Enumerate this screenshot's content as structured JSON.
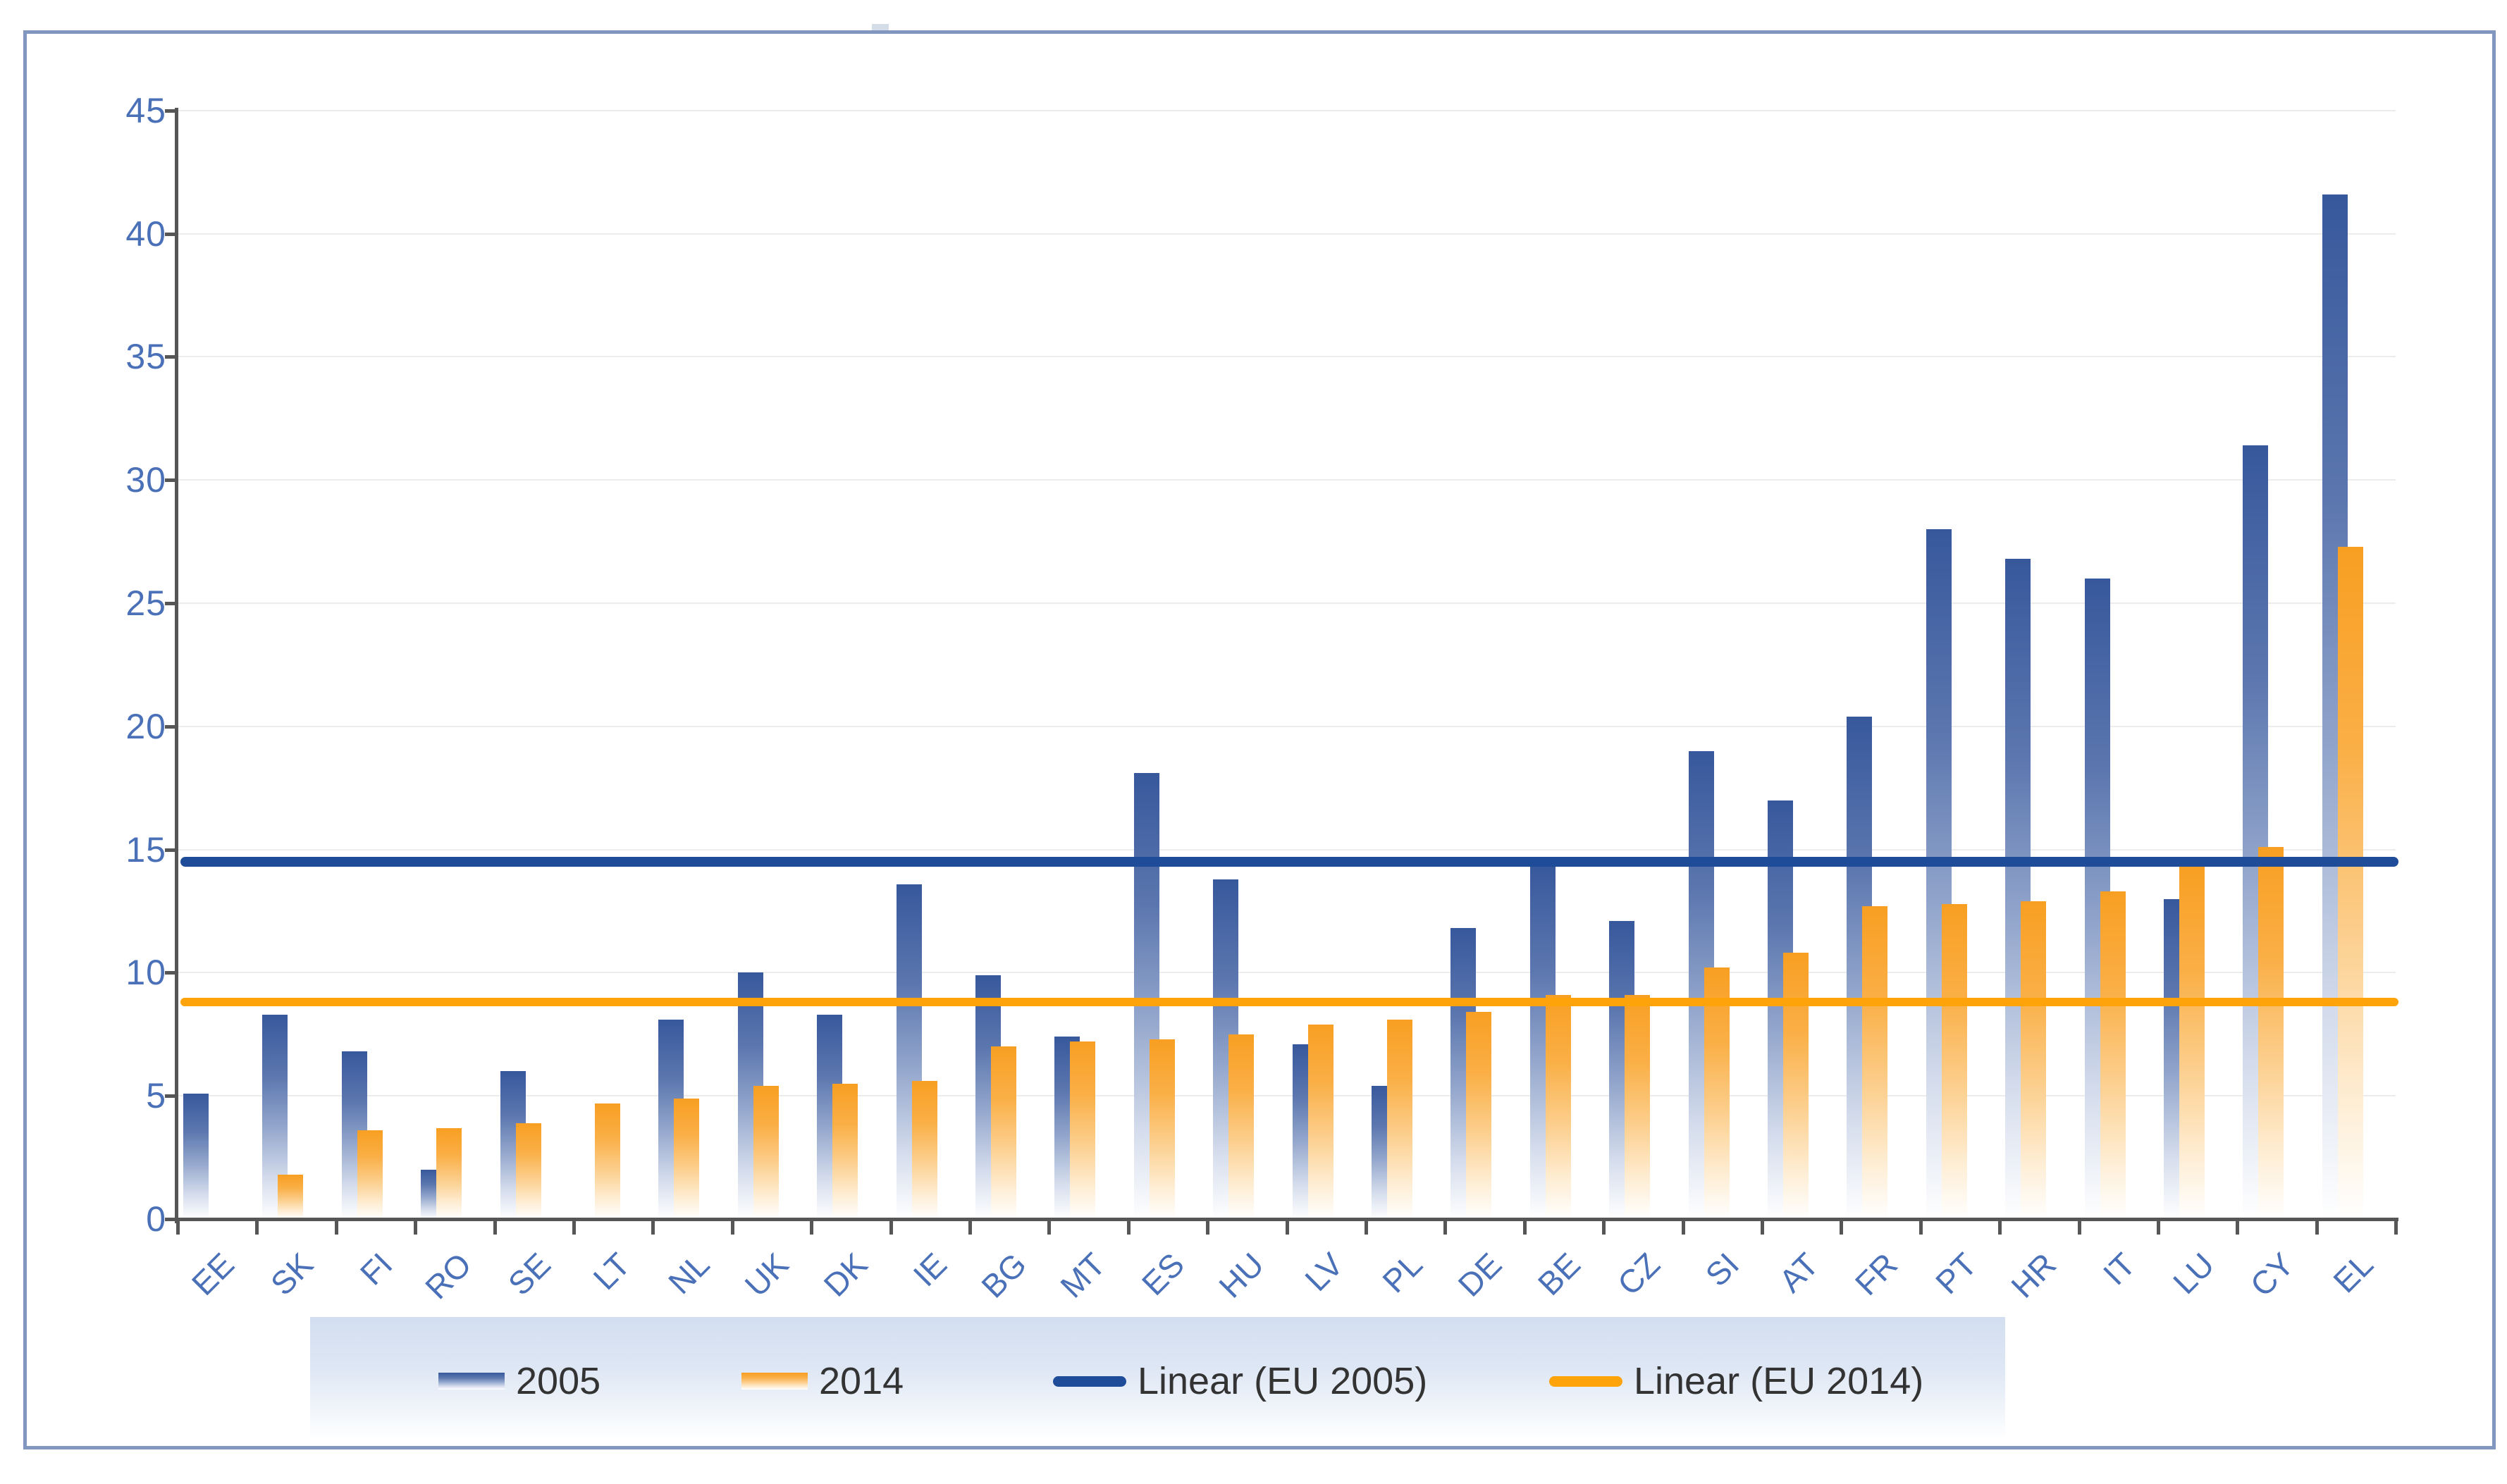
{
  "colors": {
    "bar_2005_top": "#37589C",
    "bar_2014_top": "#F89F22",
    "line_2005": "#1F4C99",
    "line_2014": "#FFA30A",
    "axis_label": "#4A70B8",
    "axis_line": "#565656",
    "figure_border": "#8197C0",
    "legend_band": "#D3DEF0"
  },
  "legend": {
    "items": [
      {
        "label": "2005",
        "swatch": "bar-blue-gradient"
      },
      {
        "label": "2014",
        "swatch": "bar-orange-gradient"
      },
      {
        "label": "Linear (EU 2005)",
        "swatch": "line-dark-blue"
      },
      {
        "label": "Linear (EU 2014)",
        "swatch": "line-orange"
      }
    ]
  },
  "chart_data": {
    "type": "bar",
    "title": "",
    "xlabel": "",
    "ylabel": "",
    "ylim": [
      0,
      45
    ],
    "ytick_step": 5,
    "ytick_labels": [
      "0",
      "5",
      "10",
      "15",
      "20",
      "25",
      "30",
      "35",
      "40",
      "45"
    ],
    "grid": true,
    "legend_position": "bottom",
    "categories": [
      "EE",
      "SK",
      "FI",
      "RO",
      "SE",
      "LT",
      "NL",
      "UK",
      "DK",
      "IE",
      "BG",
      "MT",
      "ES",
      "HU",
      "LV",
      "PL",
      "DE",
      "BE",
      "CZ",
      "SI",
      "AT",
      "FR",
      "PT",
      "HR",
      "IT",
      "LU",
      "CY",
      "EL"
    ],
    "series": [
      {
        "name": "2005",
        "values": [
          5.1,
          8.3,
          6.8,
          2.0,
          6.0,
          null,
          8.1,
          10.0,
          8.3,
          13.6,
          9.9,
          7.4,
          18.1,
          13.8,
          7.1,
          5.4,
          11.8,
          14.4,
          12.1,
          19.0,
          17.0,
          20.4,
          28.0,
          26.8,
          26.0,
          13.0,
          31.4,
          41.6
        ]
      },
      {
        "name": "2014",
        "values": [
          null,
          1.8,
          3.6,
          3.7,
          3.9,
          4.7,
          4.9,
          5.4,
          5.5,
          5.6,
          7.0,
          7.2,
          7.3,
          7.5,
          7.9,
          8.1,
          8.4,
          9.1,
          9.1,
          10.2,
          10.8,
          12.7,
          12.8,
          12.9,
          13.3,
          14.4,
          15.1,
          27.3
        ]
      }
    ],
    "lines": [
      {
        "name": "Linear (EU 2005)",
        "value": 14.5
      },
      {
        "name": "Linear (EU 2014)",
        "value": 8.8
      }
    ]
  }
}
